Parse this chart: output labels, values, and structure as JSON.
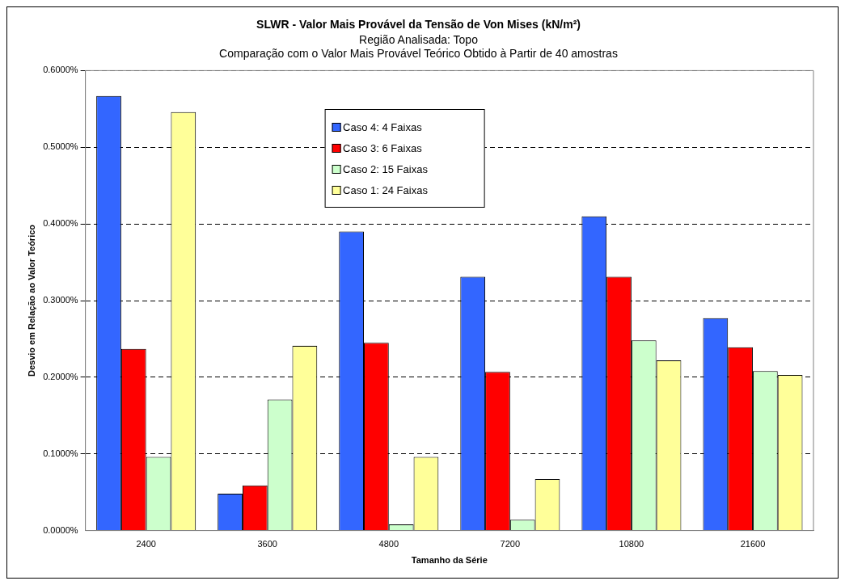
{
  "chart_data": {
    "type": "bar",
    "title": "SLWR - Valor Mais Provável da Tensão de Von Mises (kN/m²)",
    "subtitle": "Região Analisada: Topo",
    "annotations": [
      "Comparação com o Valor Mais Provável Teórico Obtido à Partir de 40 amostras"
    ],
    "xlabel": "Tamanho da Série",
    "ylabel": "Desvio em Relação ao Valor Teórico",
    "categories": [
      "2400",
      "3600",
      "4800",
      "7200",
      "10800",
      "21600"
    ],
    "series": [
      {
        "name": "Caso 4: 4 Faixas",
        "color": "#3366ff",
        "values": [
          0.567,
          0.048,
          0.39,
          0.331,
          0.41,
          0.277
        ]
      },
      {
        "name": "Caso 3: 6 Faixas",
        "color": "#ff0000",
        "values": [
          0.237,
          0.059,
          0.245,
          0.207,
          0.331,
          0.239
        ]
      },
      {
        "name": "Caso 2: 15 Faixas",
        "color": "#ccffcc",
        "values": [
          0.096,
          0.171,
          0.008,
          0.014,
          0.248,
          0.208
        ]
      },
      {
        "name": "Caso 1: 24 Faixas",
        "color": "#ffff99",
        "values": [
          0.546,
          0.241,
          0.096,
          0.067,
          0.222,
          0.203
        ]
      }
    ],
    "ylim": [
      0,
      0.6
    ],
    "yticks": [
      {
        "value": 0,
        "label": "0.0000%"
      },
      {
        "value": 0.1,
        "label": "0.1000%"
      },
      {
        "value": 0.2,
        "label": "0.2000%"
      },
      {
        "value": 0.3,
        "label": "0.3000%"
      },
      {
        "value": 0.4,
        "label": "0.4000%"
      },
      {
        "value": 0.5,
        "label": "0.5000%"
      },
      {
        "value": 0.6,
        "label": "0.6000%"
      }
    ],
    "grid": "y",
    "legend": "top"
  }
}
